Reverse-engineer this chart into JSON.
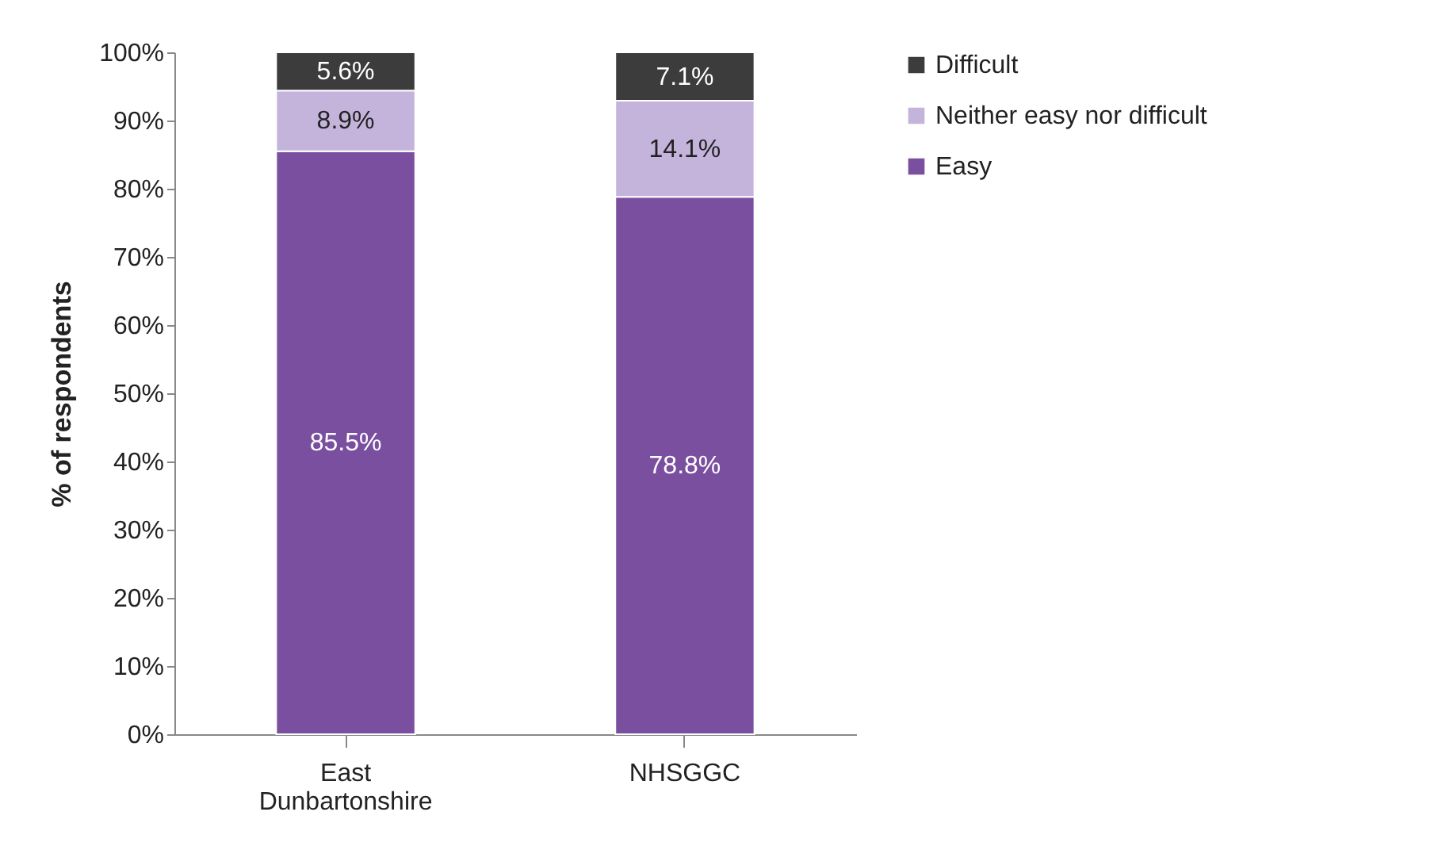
{
  "chart_data": {
    "type": "bar",
    "stacked": true,
    "ylabel": "% of respondents",
    "categories": [
      "East Dunbartonshire",
      "NHSGGC"
    ],
    "series": [
      {
        "name": "Easy",
        "color": "#7b4fa0",
        "values": [
          85.5,
          78.8
        ]
      },
      {
        "name": "Neither easy nor difficult",
        "color": "#c4b4dc",
        "values": [
          8.9,
          14.1
        ]
      },
      {
        "name": "Difficult",
        "color": "#3c3c3c",
        "values": [
          5.6,
          7.1
        ]
      }
    ],
    "value_labels": [
      [
        "85.5%",
        "78.8%"
      ],
      [
        "8.9%",
        "14.1%"
      ],
      [
        "5.6%",
        "7.1%"
      ]
    ],
    "ylim": [
      0,
      100
    ],
    "yticks": [
      {
        "value": 0,
        "label": "0%"
      },
      {
        "value": 10,
        "label": "10%"
      },
      {
        "value": 20,
        "label": "20%"
      },
      {
        "value": 30,
        "label": "30%"
      },
      {
        "value": 40,
        "label": "40%"
      },
      {
        "value": 50,
        "label": "50%"
      },
      {
        "value": 60,
        "label": "60%"
      },
      {
        "value": 70,
        "label": "70%"
      },
      {
        "value": 80,
        "label": "80%"
      },
      {
        "value": 90,
        "label": "90%"
      },
      {
        "value": 100,
        "label": "100%"
      }
    ],
    "grid": false,
    "legend": "right"
  }
}
